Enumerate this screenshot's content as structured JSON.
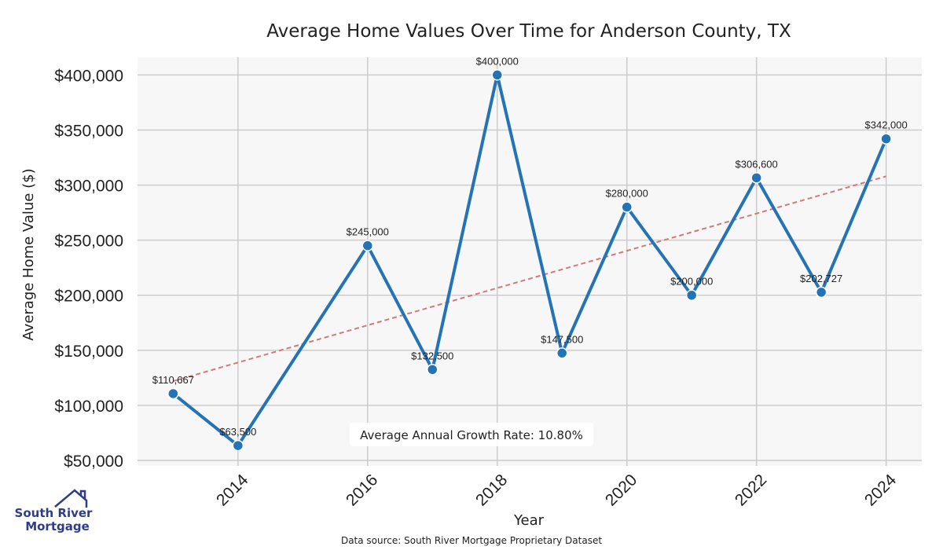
{
  "chart_data": {
    "type": "line",
    "title": "Average Home Values Over Time for Anderson County, TX",
    "xlabel": "Year",
    "ylabel": "Average Home Value ($)",
    "x": [
      2013,
      2014,
      2016,
      2017,
      2018,
      2019,
      2020,
      2021,
      2022,
      2023,
      2024
    ],
    "values": [
      110667,
      63500,
      245000,
      132500,
      400000,
      147500,
      280000,
      200000,
      306600,
      202727,
      342000
    ],
    "data_labels": [
      "$110,667",
      "$63,500",
      "$245,000",
      "$132,500",
      "$400,000",
      "$147,500",
      "$280,000",
      "$200,000",
      "$306,600",
      "$202,727",
      "$342,000"
    ],
    "x_ticks": [
      2014,
      2016,
      2018,
      2020,
      2022,
      2024
    ],
    "x_tick_labels": [
      "2014",
      "2016",
      "2018",
      "2020",
      "2022",
      "2024"
    ],
    "y_ticks": [
      50000,
      100000,
      150000,
      200000,
      250000,
      300000,
      350000,
      400000
    ],
    "y_tick_labels": [
      "$50,000",
      "$100,000",
      "$150,000",
      "$200,000",
      "$250,000",
      "$300,000",
      "$350,000",
      "$400,000"
    ],
    "xlim": [
      2012.45,
      2024.55
    ],
    "ylim": [
      45000,
      416000
    ],
    "trend": {
      "x": [
        2013,
        2024
      ],
      "y": [
        122000,
        308000
      ]
    },
    "grid": true,
    "colors": {
      "line": "#2474b5",
      "trend": "#d07a7a",
      "plot_bg": "#f7f7f7",
      "grid": "#cccccc"
    },
    "annotation": "Average Annual Growth Rate: 10.80%",
    "source_note": "Data source: South River Mortgage Proprietary Dataset"
  },
  "logo": {
    "line1": "South River",
    "line2": "Mortgage",
    "icon": "house-roof-icon",
    "color": "#2f3d87"
  }
}
